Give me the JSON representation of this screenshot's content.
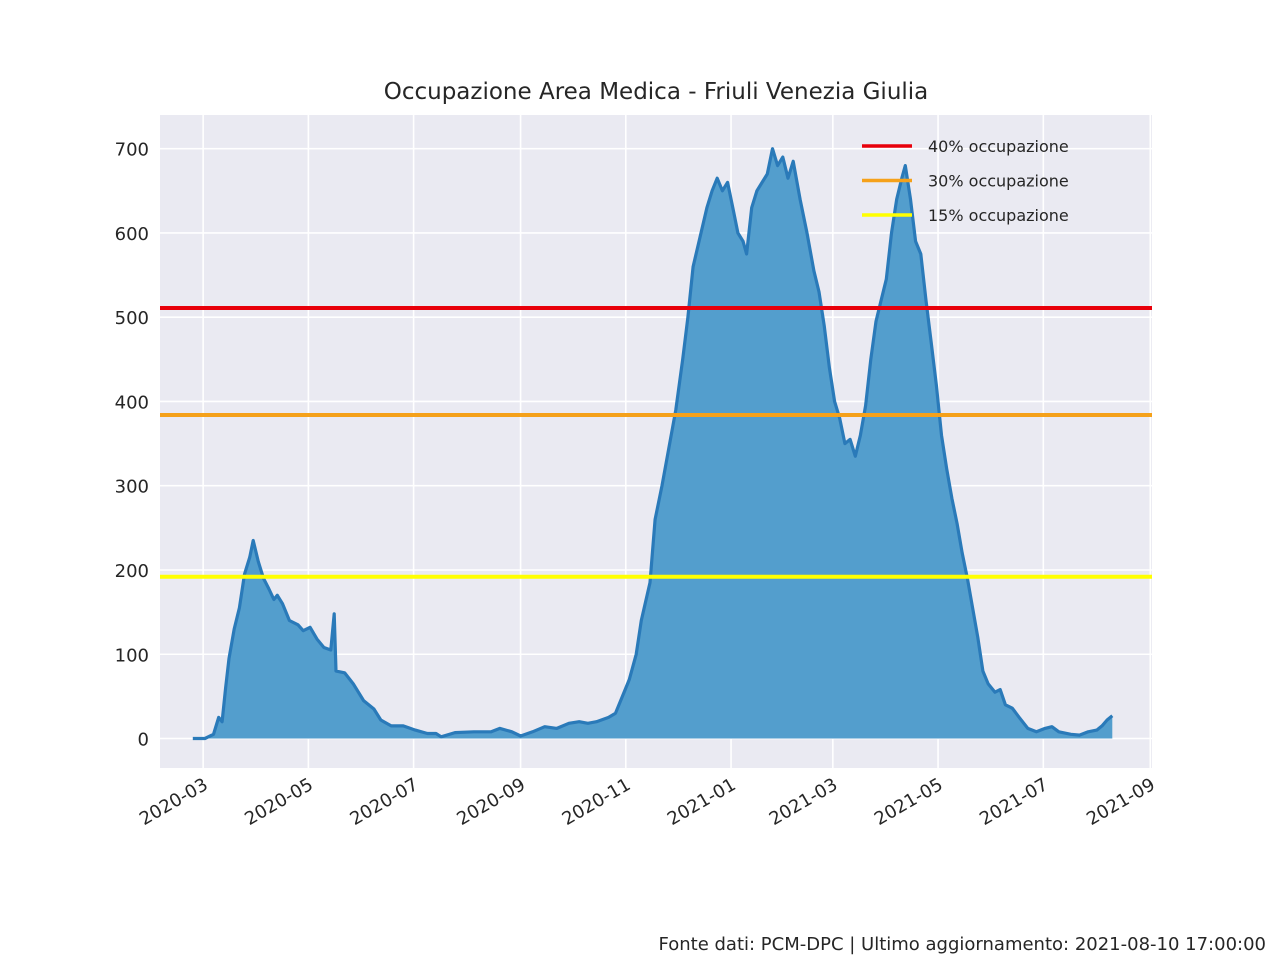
{
  "chart_data": {
    "type": "area",
    "title": "Occupazione Area Medica - Friuli Venezia Giulia",
    "xlabel": "",
    "ylabel": "",
    "x_range": [
      "2020-02-05",
      "2021-09-02"
    ],
    "ylim": [
      -35,
      740
    ],
    "y_ticks": [
      0,
      100,
      200,
      300,
      400,
      500,
      600,
      700
    ],
    "x_ticks": [
      "2020-03",
      "2020-05",
      "2020-07",
      "2020-09",
      "2020-11",
      "2021-01",
      "2021-03",
      "2021-05",
      "2021-07",
      "2021-09"
    ],
    "grid": true,
    "legend_position": "top-right",
    "colors": {
      "background": "#eaeaf2",
      "grid": "#ffffff",
      "area_fill": "#539ecd",
      "area_line": "#2a7ab9",
      "red": "#e8000b",
      "orange": "#f5a11a",
      "yellow": "#ffff00"
    },
    "thresholds": [
      {
        "label": "40% occupazione",
        "value": 511,
        "color": "#e8000b"
      },
      {
        "label": "30% occupazione",
        "value": 384,
        "color": "#f5a11a"
      },
      {
        "label": "15% occupazione",
        "value": 192,
        "color": "#ffff00"
      }
    ],
    "series": [
      {
        "points": [
          [
            "2020-02-24",
            0
          ],
          [
            "2020-03-02",
            0
          ],
          [
            "2020-03-07",
            5
          ],
          [
            "2020-03-10",
            25
          ],
          [
            "2020-03-12",
            20
          ],
          [
            "2020-03-14",
            60
          ],
          [
            "2020-03-16",
            95
          ],
          [
            "2020-03-19",
            130
          ],
          [
            "2020-03-22",
            155
          ],
          [
            "2020-03-25",
            195
          ],
          [
            "2020-03-28",
            215
          ],
          [
            "2020-03-30",
            235
          ],
          [
            "2020-04-02",
            210
          ],
          [
            "2020-04-05",
            190
          ],
          [
            "2020-04-08",
            178
          ],
          [
            "2020-04-11",
            165
          ],
          [
            "2020-04-13",
            170
          ],
          [
            "2020-04-16",
            160
          ],
          [
            "2020-04-20",
            140
          ],
          [
            "2020-04-25",
            135
          ],
          [
            "2020-04-28",
            128
          ],
          [
            "2020-05-02",
            132
          ],
          [
            "2020-05-06",
            118
          ],
          [
            "2020-05-10",
            108
          ],
          [
            "2020-05-14",
            105
          ],
          [
            "2020-05-16",
            148
          ],
          [
            "2020-05-17",
            80
          ],
          [
            "2020-05-22",
            78
          ],
          [
            "2020-05-27",
            65
          ],
          [
            "2020-06-02",
            45
          ],
          [
            "2020-06-08",
            35
          ],
          [
            "2020-06-12",
            22
          ],
          [
            "2020-06-18",
            15
          ],
          [
            "2020-06-25",
            15
          ],
          [
            "2020-07-02",
            10
          ],
          [
            "2020-07-09",
            6
          ],
          [
            "2020-07-14",
            6
          ],
          [
            "2020-07-17",
            2
          ],
          [
            "2020-07-25",
            7
          ],
          [
            "2020-08-05",
            8
          ],
          [
            "2020-08-15",
            8
          ],
          [
            "2020-08-20",
            12
          ],
          [
            "2020-08-27",
            8
          ],
          [
            "2020-09-01",
            3
          ],
          [
            "2020-09-08",
            8
          ],
          [
            "2020-09-15",
            14
          ],
          [
            "2020-09-22",
            12
          ],
          [
            "2020-09-29",
            18
          ],
          [
            "2020-10-05",
            20
          ],
          [
            "2020-10-10",
            18
          ],
          [
            "2020-10-15",
            20
          ],
          [
            "2020-10-22",
            25
          ],
          [
            "2020-10-26",
            30
          ],
          [
            "2020-10-30",
            50
          ],
          [
            "2020-11-03",
            70
          ],
          [
            "2020-11-07",
            100
          ],
          [
            "2020-11-10",
            140
          ],
          [
            "2020-11-15",
            185
          ],
          [
            "2020-11-18",
            260
          ],
          [
            "2020-11-22",
            300
          ],
          [
            "2020-11-26",
            345
          ],
          [
            "2020-11-30",
            390
          ],
          [
            "2020-12-04",
            450
          ],
          [
            "2020-12-07",
            500
          ],
          [
            "2020-12-10",
            560
          ],
          [
            "2020-12-14",
            595
          ],
          [
            "2020-12-18",
            630
          ],
          [
            "2020-12-21",
            650
          ],
          [
            "2020-12-24",
            665
          ],
          [
            "2020-12-27",
            650
          ],
          [
            "2020-12-30",
            660
          ],
          [
            "2021-01-02",
            630
          ],
          [
            "2021-01-05",
            600
          ],
          [
            "2021-01-08",
            590
          ],
          [
            "2021-01-10",
            575
          ],
          [
            "2021-01-13",
            630
          ],
          [
            "2021-01-16",
            650
          ],
          [
            "2021-01-19",
            660
          ],
          [
            "2021-01-22",
            670
          ],
          [
            "2021-01-25",
            700
          ],
          [
            "2021-01-28",
            680
          ],
          [
            "2021-01-31",
            690
          ],
          [
            "2021-02-03",
            665
          ],
          [
            "2021-02-06",
            685
          ],
          [
            "2021-02-10",
            640
          ],
          [
            "2021-02-14",
            600
          ],
          [
            "2021-02-18",
            555
          ],
          [
            "2021-02-21",
            530
          ],
          [
            "2021-02-24",
            490
          ],
          [
            "2021-02-27",
            440
          ],
          [
            "2021-03-02",
            400
          ],
          [
            "2021-03-05",
            380
          ],
          [
            "2021-03-08",
            350
          ],
          [
            "2021-03-11",
            355
          ],
          [
            "2021-03-14",
            335
          ],
          [
            "2021-03-17",
            360
          ],
          [
            "2021-03-20",
            395
          ],
          [
            "2021-03-23",
            450
          ],
          [
            "2021-03-26",
            495
          ],
          [
            "2021-03-29",
            520
          ],
          [
            "2021-04-01",
            545
          ],
          [
            "2021-04-04",
            600
          ],
          [
            "2021-04-07",
            640
          ],
          [
            "2021-04-10",
            665
          ],
          [
            "2021-04-12",
            680
          ],
          [
            "2021-04-15",
            640
          ],
          [
            "2021-04-18",
            590
          ],
          [
            "2021-04-21",
            575
          ],
          [
            "2021-04-24",
            520
          ],
          [
            "2021-04-27",
            470
          ],
          [
            "2021-04-30",
            420
          ],
          [
            "2021-05-03",
            360
          ],
          [
            "2021-05-06",
            320
          ],
          [
            "2021-05-09",
            285
          ],
          [
            "2021-05-12",
            255
          ],
          [
            "2021-05-15",
            220
          ],
          [
            "2021-05-18",
            190
          ],
          [
            "2021-05-21",
            155
          ],
          [
            "2021-05-24",
            120
          ],
          [
            "2021-05-27",
            80
          ],
          [
            "2021-05-30",
            65
          ],
          [
            "2021-06-03",
            55
          ],
          [
            "2021-06-06",
            58
          ],
          [
            "2021-06-09",
            40
          ],
          [
            "2021-06-13",
            36
          ],
          [
            "2021-06-17",
            25
          ],
          [
            "2021-06-22",
            12
          ],
          [
            "2021-06-27",
            8
          ],
          [
            "2021-07-02",
            12
          ],
          [
            "2021-07-06",
            14
          ],
          [
            "2021-07-10",
            8
          ],
          [
            "2021-07-17",
            5
          ],
          [
            "2021-07-22",
            4
          ],
          [
            "2021-07-27",
            8
          ],
          [
            "2021-08-01",
            10
          ],
          [
            "2021-08-04",
            15
          ],
          [
            "2021-08-07",
            22
          ],
          [
            "2021-08-10",
            27
          ]
        ]
      }
    ]
  },
  "footer": "Fonte dati: PCM-DPC | Ultimo aggiornamento: 2021-08-10 17:00:00"
}
